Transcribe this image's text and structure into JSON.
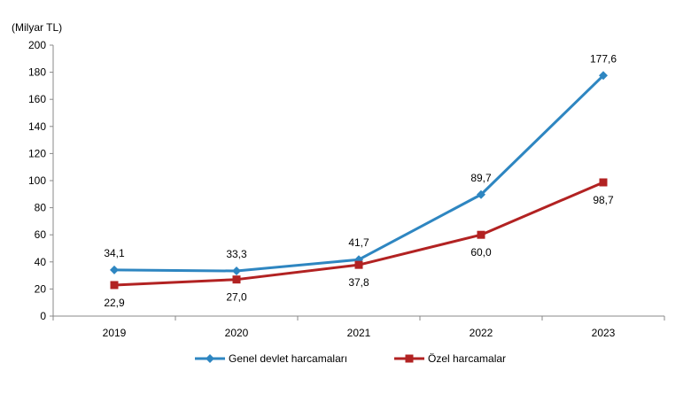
{
  "chart_data": {
    "type": "line",
    "unit_label": "(Milyar TL)",
    "categories": [
      "2019",
      "2020",
      "2021",
      "2022",
      "2023"
    ],
    "series": [
      {
        "name": "Genel devlet harcamaları",
        "values": [
          34.1,
          33.3,
          41.7,
          89.7,
          177.6
        ],
        "labels": [
          "34,1",
          "33,3",
          "41,7",
          "89,7",
          "177,6"
        ],
        "color": "#2E86C1",
        "marker": "diamond",
        "label_position": "above"
      },
      {
        "name": "Özel harcamalar",
        "values": [
          22.9,
          27.0,
          37.8,
          60.0,
          98.7
        ],
        "labels": [
          "22,9",
          "27,0",
          "37,8",
          "60,0",
          "98,7"
        ],
        "color": "#B22222",
        "marker": "square",
        "label_position": "below"
      }
    ],
    "y_ticks": [
      "0",
      "20",
      "40",
      "60",
      "80",
      "100",
      "120",
      "140",
      "160",
      "180",
      "200"
    ],
    "ylim": [
      0,
      200
    ],
    "grid": false,
    "legend_position": "bottom"
  }
}
